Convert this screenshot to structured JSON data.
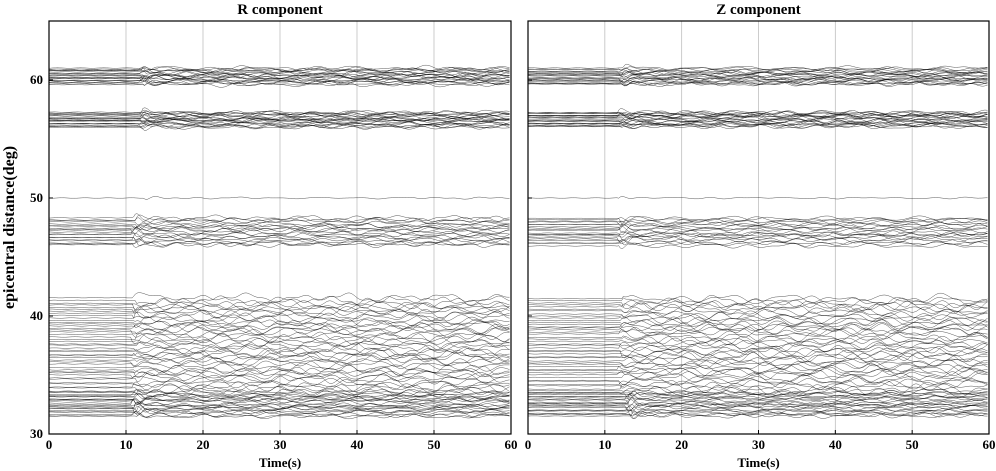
{
  "chart_data": [
    {
      "type": "line",
      "title": "R component",
      "xlabel": "Time(s)",
      "ylabel": "epicentral distance(deg)",
      "xlim": [
        0,
        60
      ],
      "ylim": [
        30,
        65
      ],
      "xticks": [
        0,
        10,
        20,
        30,
        40,
        50,
        60
      ],
      "yticks": [
        30,
        40,
        50,
        60
      ],
      "x_tick_labels": [
        "0",
        "10",
        "20",
        "30",
        "40",
        "50",
        "60"
      ],
      "y_tick_labels": [
        "30",
        "40",
        "50",
        "60"
      ],
      "grid": "vertical",
      "trace_color": "#000000",
      "grid_color": "#bfbfbf",
      "first_arrival_s": [
        {
          "distance_range_deg": [
            31,
            33
          ],
          "time_s": 11
        },
        {
          "distance_range_deg": [
            45,
            49
          ],
          "time_s": 11
        },
        {
          "distance_range_deg": [
            55,
            62
          ],
          "time_s": 12
        }
      ],
      "trace_groups": [
        {
          "distance_range_deg": [
            31.5,
            33.5
          ],
          "count": 22,
          "arrival_s": 11,
          "first_amp": 1.6,
          "coda_amp": 0.45
        },
        {
          "distance_range_deg": [
            33.5,
            41.5
          ],
          "count": 45,
          "arrival_s": 11,
          "first_amp": 0.8,
          "coda_amp": 0.9
        },
        {
          "distance_range_deg": [
            46.0,
            48.3
          ],
          "count": 20,
          "arrival_s": 11,
          "first_amp": 1.4,
          "coda_amp": 0.5
        },
        {
          "distance_range_deg": [
            50.0,
            50.0
          ],
          "count": 1,
          "arrival_s": 12,
          "first_amp": 0.6,
          "coda_amp": 0.18
        },
        {
          "distance_range_deg": [
            56.0,
            57.3
          ],
          "count": 22,
          "arrival_s": 12,
          "first_amp": 0.8,
          "coda_amp": 0.4
        },
        {
          "distance_range_deg": [
            59.6,
            61.0
          ],
          "count": 22,
          "arrival_s": 12,
          "first_amp": 1.0,
          "coda_amp": 0.45
        }
      ]
    },
    {
      "type": "line",
      "title": "Z component",
      "xlabel": "Time(s)",
      "ylabel": "",
      "xlim": [
        0,
        60
      ],
      "ylim": [
        30,
        65
      ],
      "xticks": [
        0,
        10,
        20,
        30,
        40,
        50,
        60
      ],
      "yticks": [
        30,
        40,
        50,
        60
      ],
      "x_tick_labels": [
        "0",
        "10",
        "20",
        "30",
        "40",
        "50",
        "60"
      ],
      "grid": "vertical",
      "trace_color": "#000000",
      "grid_color": "#bfbfbf",
      "first_arrival_s": [
        {
          "distance_range_deg": [
            31,
            33
          ],
          "time_s": 13
        },
        {
          "distance_range_deg": [
            45,
            49
          ],
          "time_s": 12
        },
        {
          "distance_range_deg": [
            55,
            62
          ],
          "time_s": 12
        }
      ],
      "trace_groups": [
        {
          "distance_range_deg": [
            31.5,
            33.5
          ],
          "count": 22,
          "arrival_s": 13,
          "first_amp": 1.6,
          "coda_amp": 0.4
        },
        {
          "distance_range_deg": [
            33.5,
            41.5
          ],
          "count": 45,
          "arrival_s": 12,
          "first_amp": 0.8,
          "coda_amp": 0.9
        },
        {
          "distance_range_deg": [
            46.0,
            48.3
          ],
          "count": 20,
          "arrival_s": 12,
          "first_amp": 1.4,
          "coda_amp": 0.45
        },
        {
          "distance_range_deg": [
            50.0,
            50.0
          ],
          "count": 1,
          "arrival_s": 12,
          "first_amp": 0.6,
          "coda_amp": 0.15
        },
        {
          "distance_range_deg": [
            56.0,
            57.3
          ],
          "count": 22,
          "arrival_s": 12,
          "first_amp": 0.9,
          "coda_amp": 0.45
        },
        {
          "distance_range_deg": [
            59.6,
            61.0
          ],
          "count": 22,
          "arrival_s": 12,
          "first_amp": 1.0,
          "coda_amp": 0.4
        }
      ]
    }
  ]
}
